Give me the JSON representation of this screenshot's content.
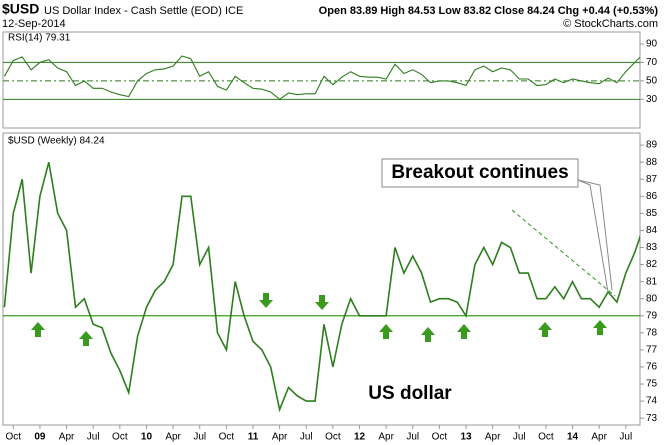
{
  "chart_data": {
    "type": "line",
    "symbol": "$USD",
    "title": "US Dollar Index - Cash Settle (EOD) ICE",
    "date": "12-Sep-2014",
    "quote": "Open 83.89 High 84.53 Low 83.82 Close 84.24 Chg +0.44 (+0.53%)",
    "credit": "© StockCharts.com",
    "categories": [
      null,
      "Oct",
      null,
      null,
      "09",
      null,
      null,
      "Apr",
      null,
      null,
      "Jul",
      null,
      null,
      "Oct",
      null,
      null,
      "10",
      null,
      null,
      "Apr",
      null,
      null,
      "Jul",
      null,
      null,
      "Oct",
      null,
      null,
      "11",
      null,
      null,
      "Apr",
      null,
      null,
      "Jul",
      null,
      null,
      "Oct",
      null,
      null,
      "12",
      null,
      null,
      "Apr",
      null,
      null,
      "Jul",
      null,
      null,
      "Oct",
      null,
      null,
      "13",
      null,
      null,
      "Apr",
      null,
      null,
      "Jul",
      null,
      null,
      "Oct",
      null,
      null,
      "14",
      null,
      null,
      "Apr",
      null,
      null,
      "Jul",
      null,
      null
    ],
    "rsi": {
      "label": "RSI(14) 79.31",
      "color": "#2e7d1e",
      "ylim": [
        0,
        103
      ],
      "yticks": [
        30,
        50,
        70,
        90
      ],
      "levels": [
        30,
        50,
        70
      ],
      "values": [
        55,
        72,
        76,
        62,
        70,
        73,
        64,
        60,
        45,
        50,
        42,
        42,
        38,
        35,
        33,
        50,
        58,
        62,
        63,
        66,
        77,
        74,
        55,
        60,
        44,
        40,
        55,
        48,
        42,
        41,
        38,
        30,
        37,
        35,
        36,
        36,
        55,
        46,
        54,
        60,
        55,
        54,
        54,
        52,
        68,
        58,
        62,
        57,
        48,
        50,
        50,
        48,
        45,
        62,
        66,
        60,
        64,
        62,
        52,
        52,
        45,
        46,
        52,
        48,
        52,
        50,
        48,
        47,
        53,
        48,
        60,
        70,
        79.31
      ]
    },
    "price": {
      "label": "$USD (Weekly) 84.24",
      "color": "#2e7d1e",
      "ylim": [
        72.6,
        89.65
      ],
      "yticks": [
        73,
        74,
        75,
        76,
        77,
        78,
        79,
        80,
        81,
        82,
        83,
        84,
        85,
        86,
        87,
        88,
        89
      ],
      "support": 79,
      "values": [
        79.5,
        85,
        87,
        81.5,
        86,
        88,
        85,
        84,
        79.5,
        80,
        78.5,
        78.3,
        76.8,
        75.8,
        74.5,
        77.8,
        79.5,
        80.5,
        81,
        82,
        86,
        86,
        82,
        83,
        78,
        77,
        81,
        79,
        77.5,
        77,
        76,
        73.5,
        74.8,
        74.3,
        74,
        74,
        78.5,
        76,
        78.5,
        80,
        79,
        79,
        79,
        79,
        83,
        81.5,
        82.5,
        81.5,
        79.8,
        80,
        80,
        79.8,
        79,
        82,
        83,
        82,
        83.3,
        83,
        81.5,
        81.5,
        80,
        80,
        80.7,
        80,
        81,
        80,
        80,
        79.5,
        80.4,
        79.8,
        81.5,
        82.7,
        84.24
      ]
    },
    "annotations": [
      "Breakout continues",
      "US dollar"
    ]
  }
}
